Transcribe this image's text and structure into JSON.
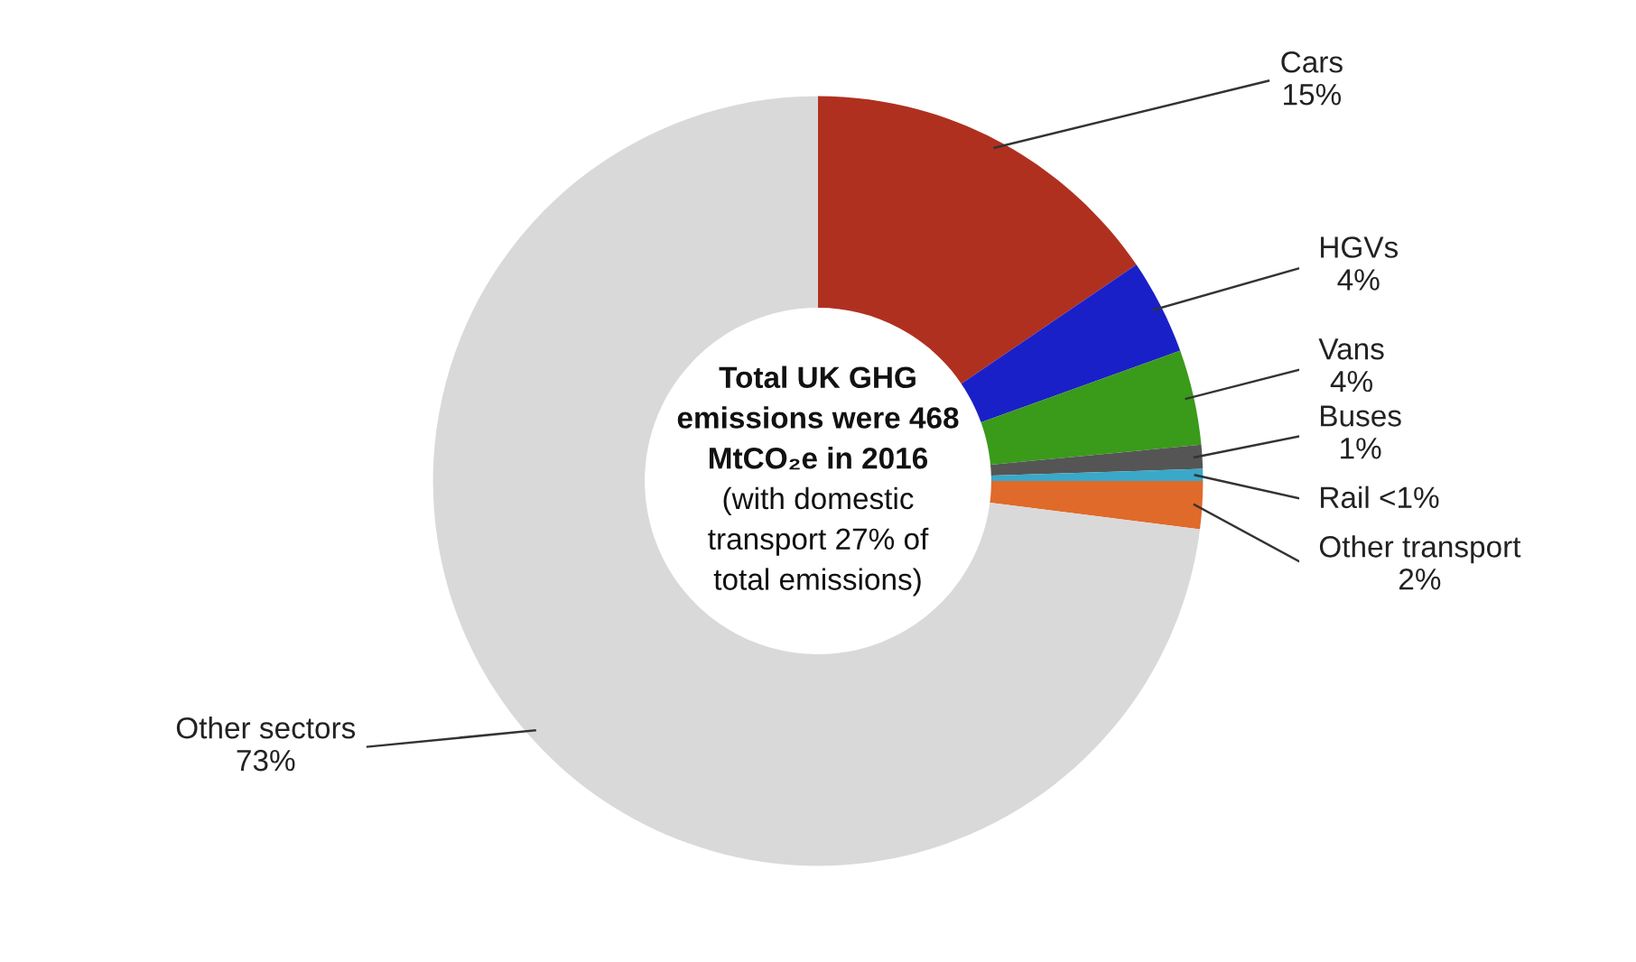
{
  "chart_data": {
    "type": "donut",
    "categories": [
      "Cars",
      "HGVs",
      "Vans",
      "Buses",
      "Rail",
      "Other transport",
      "Other sectors"
    ],
    "values": [
      15.5,
      4,
      4,
      1,
      0.5,
      2,
      73
    ],
    "value_labels": [
      "15%",
      "4%",
      "4%",
      "1%",
      "<1%",
      "2%",
      "73%"
    ],
    "colors": [
      "#b03020",
      "#1a20c8",
      "#3a9a1a",
      "#555555",
      "#3aa8c8",
      "#e06a2a",
      "#d9d9d9"
    ],
    "annotations": [
      "Total UK GHG emissions were 468 MtCO₂e in 2016",
      "(with domestic transport 27% of total emissions)"
    ],
    "legend": false
  }
}
